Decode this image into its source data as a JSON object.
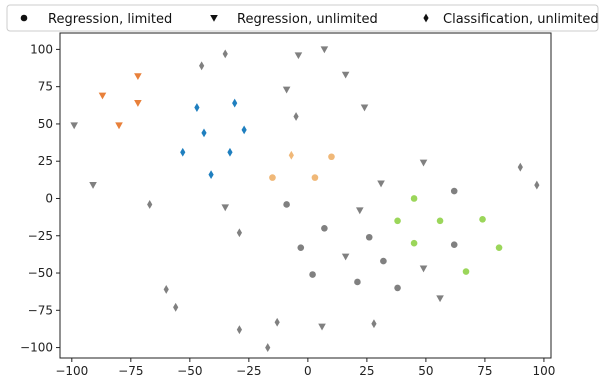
{
  "chart_data": {
    "type": "scatter",
    "title": "",
    "xlabel": "",
    "ylabel": "",
    "xlim": [
      -105,
      103
    ],
    "ylim": [
      -107,
      111
    ],
    "x_ticks": [
      -100,
      -75,
      -50,
      -25,
      0,
      25,
      50,
      75,
      100
    ],
    "y_ticks": [
      -100,
      -75,
      -50,
      -25,
      0,
      25,
      50,
      75,
      100
    ],
    "x_tick_labels": [
      "−100",
      "−75",
      "−50",
      "−25",
      "0",
      "25",
      "50",
      "75",
      "100"
    ],
    "y_tick_labels": [
      "−100",
      "−75",
      "−50",
      "−25",
      "0",
      "25",
      "50",
      "75",
      "100"
    ],
    "grid": false,
    "legend": {
      "placement": "top",
      "entries": [
        {
          "label": "Regression, limited",
          "marker": "circle"
        },
        {
          "label": "Regression, unlimited",
          "marker": "triangle-down"
        },
        {
          "label": "Classification, unlimited",
          "marker": "diamond"
        }
      ]
    },
    "colors": {
      "gray": "#808080",
      "orange": "#e8803a",
      "blue": "#1f7fbf",
      "light_orange": "#f0b878",
      "light_green": "#9bd65a"
    },
    "series": [
      {
        "marker": "circle",
        "color": "gray",
        "points": [
          [
            -9,
            -4
          ],
          [
            -3,
            -33
          ],
          [
            2,
            -51
          ],
          [
            7,
            -20
          ],
          [
            21,
            -56
          ],
          [
            26,
            -26
          ],
          [
            32,
            -42
          ],
          [
            38,
            -60
          ],
          [
            62,
            -31
          ],
          [
            62,
            5
          ]
        ]
      },
      {
        "marker": "circle",
        "color": "light_orange",
        "points": [
          [
            -15,
            14
          ],
          [
            3,
            14
          ],
          [
            10,
            28
          ]
        ]
      },
      {
        "marker": "circle",
        "color": "light_green",
        "points": [
          [
            45,
            0
          ],
          [
            38,
            -15
          ],
          [
            45,
            -30
          ],
          [
            56,
            -15
          ],
          [
            67,
            -49
          ],
          [
            74,
            -14
          ],
          [
            81,
            -33
          ]
        ]
      },
      {
        "marker": "triangle-down",
        "color": "gray",
        "points": [
          [
            -99,
            49
          ],
          [
            -91,
            9
          ],
          [
            -35,
            -6
          ],
          [
            -9,
            73
          ],
          [
            -4,
            96
          ],
          [
            7,
            100
          ],
          [
            16,
            83
          ],
          [
            24,
            61
          ],
          [
            31,
            10
          ],
          [
            22,
            -8
          ],
          [
            16,
            -39
          ],
          [
            49,
            24
          ],
          [
            49,
            -47
          ],
          [
            56,
            -67
          ],
          [
            6,
            -86
          ]
        ]
      },
      {
        "marker": "triangle-down",
        "color": "orange",
        "points": [
          [
            -87,
            69
          ],
          [
            -80,
            49
          ],
          [
            -72,
            82
          ],
          [
            -72,
            64
          ]
        ]
      },
      {
        "marker": "diamond",
        "color": "gray",
        "points": [
          [
            -67,
            -4
          ],
          [
            -45,
            89
          ],
          [
            -35,
            97
          ],
          [
            -29,
            -23
          ],
          [
            -5,
            55
          ],
          [
            -60,
            -61
          ],
          [
            -56,
            -73
          ],
          [
            -29,
            -88
          ],
          [
            -13,
            -83
          ],
          [
            -17,
            -100
          ],
          [
            28,
            -84
          ],
          [
            90,
            21
          ],
          [
            97,
            9
          ]
        ]
      },
      {
        "marker": "diamond",
        "color": "blue",
        "points": [
          [
            -53,
            31
          ],
          [
            -47,
            61
          ],
          [
            -44,
            44
          ],
          [
            -41,
            16
          ],
          [
            -33,
            31
          ],
          [
            -31,
            64
          ],
          [
            -27,
            46
          ]
        ]
      },
      {
        "marker": "diamond",
        "color": "light_orange",
        "points": [
          [
            -7,
            29
          ]
        ]
      }
    ]
  }
}
